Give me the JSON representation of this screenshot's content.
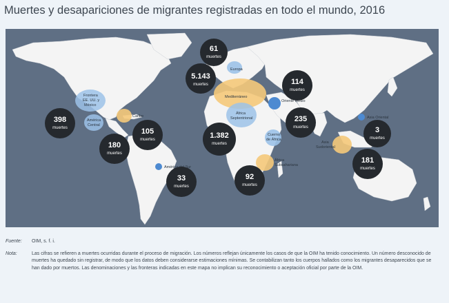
{
  "title": "Muertes y desapariciones de migrantes registradas en todo el mundo, 2016",
  "unit": "muertes",
  "colors": {
    "ocean": "#5f6f84",
    "land": "#f4f4f4",
    "count_bubble": "#25292e",
    "region_orange": "#f5c97a",
    "region_blue": "#9cc2e8",
    "point_blue": "#4d8ad1"
  },
  "counts": [
    {
      "id": "mediterraneo",
      "value": "5.143"
    },
    {
      "id": "europa",
      "value": "61"
    },
    {
      "id": "oriente-medio",
      "value": "114"
    },
    {
      "id": "cuerno-africa",
      "value": "235"
    },
    {
      "id": "frontera-eeuu-mexico",
      "value": "398"
    },
    {
      "id": "caribe",
      "value": "105"
    },
    {
      "id": "america-central",
      "value": "180"
    },
    {
      "id": "africa-septentrional",
      "value": "1.382"
    },
    {
      "id": "america-del-sur",
      "value": "33"
    },
    {
      "id": "africa-subsahariana",
      "value": "92"
    },
    {
      "id": "asia-oriental",
      "value": "3"
    },
    {
      "id": "asia-sudoriental",
      "value": "181"
    }
  ],
  "regions": {
    "europa": "Europa",
    "mediterraneo": "Mediterráneo",
    "oriente_medio": "Oriente Medio",
    "frontera": [
      "Frontera",
      "EE. UU. y",
      "México"
    ],
    "america_central": [
      "América",
      "Central"
    ],
    "caribe": "Caribe",
    "africa_sept": [
      "África",
      "Septentrional"
    ],
    "cuerno": [
      "Cuerno",
      "de África"
    ],
    "america_sur": "América del Sur",
    "africa_sub": [
      "África",
      "Subsahariana"
    ],
    "asia_oriental": "Asia Oriental",
    "asia_sud": [
      "Asia",
      "Sudoriental"
    ]
  },
  "footer": {
    "fuente_label": "Fuente:",
    "fuente_text": "OIM, s. f. i.",
    "nota_label": "Nota:",
    "nota_text": "Las cifras se refieren a muertes ocurridas durante el proceso de migración. Los números reflejan únicamente los casos de que la OIM ha tenido conocimiento. Un número desconocido de muertes ha quedado sin registrar, de modo que los datos deben considerarse estimaciones mínimas. Se contabilizan tanto los cuerpos hallados como los migrantes desaparecidos que se han dado por muertos. Las denominaciones y las fronteras indicadas en este mapa no implican su reconocimiento o aceptación oficial por parte de la OIM."
  }
}
